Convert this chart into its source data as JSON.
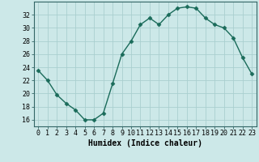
{
  "x": [
    0,
    1,
    2,
    3,
    4,
    5,
    6,
    7,
    8,
    9,
    10,
    11,
    12,
    13,
    14,
    15,
    16,
    17,
    18,
    19,
    20,
    21,
    22,
    23
  ],
  "y": [
    23.5,
    22.0,
    19.8,
    18.5,
    17.5,
    16.0,
    16.0,
    17.0,
    21.5,
    26.0,
    28.0,
    30.5,
    31.5,
    30.5,
    32.0,
    33.0,
    33.2,
    33.0,
    31.5,
    30.5,
    30.0,
    28.5,
    25.5,
    23.0
  ],
  "line_color": "#1a6b5a",
  "marker": "D",
  "markersize": 2.5,
  "linewidth": 1.0,
  "bg_color": "#cce8e8",
  "grid_color": "#aacfcf",
  "xlabel": "Humidex (Indice chaleur)",
  "ylim": [
    15,
    34
  ],
  "xlim": [
    -0.5,
    23.5
  ],
  "yticks": [
    16,
    18,
    20,
    22,
    24,
    26,
    28,
    30,
    32
  ],
  "xticks": [
    0,
    1,
    2,
    3,
    4,
    5,
    6,
    7,
    8,
    9,
    10,
    11,
    12,
    13,
    14,
    15,
    16,
    17,
    18,
    19,
    20,
    21,
    22,
    23
  ],
  "xlabel_fontsize": 7.0,
  "tick_fontsize": 6.0
}
